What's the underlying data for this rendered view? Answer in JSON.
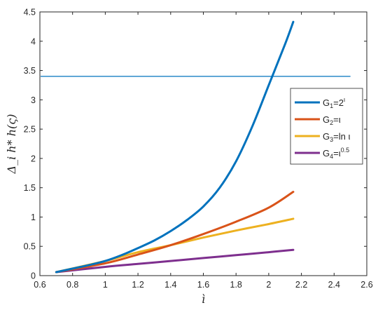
{
  "chart_data": {
    "type": "line",
    "xlabel": "ì",
    "ylabel": "Δ_i h* h(ς)",
    "xlim": [
      0.6,
      2.6
    ],
    "ylim": [
      0,
      4.5
    ],
    "x_ticks": [
      "0.6",
      "0.8",
      "1",
      "1.2",
      "1.4",
      "1.6",
      "1.8",
      "2",
      "2.2",
      "2.4",
      "2.6"
    ],
    "y_ticks": [
      "0",
      "0.5",
      "1",
      "1.5",
      "2",
      "2.5",
      "3",
      "3.5",
      "4",
      "4.5"
    ],
    "grid": false,
    "legend_position": "right",
    "series": [
      {
        "name": "G1=2^ι",
        "legend": {
          "G": "G",
          "sub": "1",
          "eq": "=2",
          "sup": "ι"
        },
        "color": "#0072BD",
        "x": [
          0.7,
          0.8,
          0.9,
          1.0,
          1.1,
          1.2,
          1.3,
          1.4,
          1.5,
          1.6,
          1.7,
          1.8,
          1.9,
          2.0,
          2.1,
          2.15
        ],
        "y": [
          0.06,
          0.12,
          0.18,
          0.25,
          0.35,
          0.47,
          0.6,
          0.76,
          0.95,
          1.18,
          1.5,
          1.95,
          2.55,
          3.25,
          3.95,
          4.33
        ]
      },
      {
        "name": "G2=ι",
        "legend": {
          "G": "G",
          "sub": "2",
          "eq": "=ι",
          "sup": ""
        },
        "color": "#D95319",
        "x": [
          0.7,
          1.0,
          1.2,
          1.4,
          1.6,
          1.8,
          2.0,
          2.15
        ],
        "y": [
          0.06,
          0.21,
          0.36,
          0.52,
          0.71,
          0.92,
          1.16,
          1.43
        ]
      },
      {
        "name": "G3=ln ι",
        "legend": {
          "G": "G",
          "sub": "3",
          "eq": "=ln ι",
          "sup": ""
        },
        "color": "#EDB120",
        "x": [
          0.7,
          1.0,
          1.2,
          1.4,
          1.6,
          1.8,
          2.0,
          2.15
        ],
        "y": [
          0.06,
          0.25,
          0.4,
          0.52,
          0.65,
          0.77,
          0.88,
          0.97
        ]
      },
      {
        "name": "G4=ι^0.5",
        "legend": {
          "G": "G",
          "sub": "4",
          "eq": "=ι",
          "sup": "0.5"
        },
        "color": "#7E2F8E",
        "x": [
          0.7,
          1.0,
          1.2,
          1.4,
          1.6,
          1.8,
          2.0,
          2.15
        ],
        "y": [
          0.06,
          0.15,
          0.2,
          0.25,
          0.3,
          0.35,
          0.4,
          0.44
        ]
      }
    ],
    "reference_line": {
      "color": "#0072BD",
      "x": [
        0.6,
        2.5
      ],
      "y": 3.4
    }
  }
}
